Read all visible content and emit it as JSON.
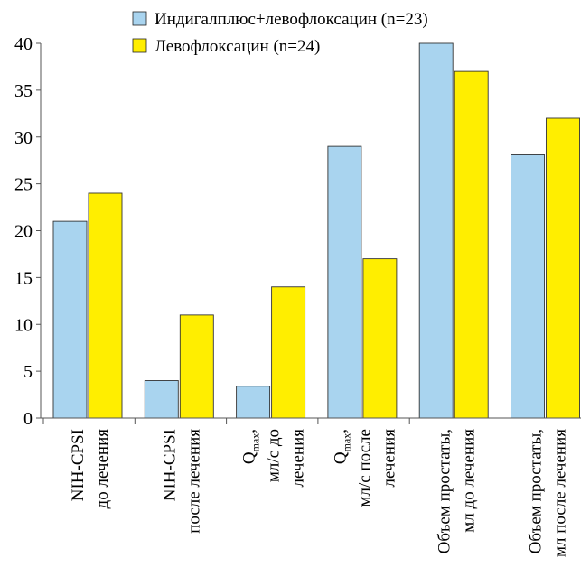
{
  "chart_data": {
    "type": "bar",
    "categories": [
      {
        "lines": [
          "NIH-CPSI",
          "до лечения"
        ]
      },
      {
        "lines": [
          "NIH-CPSI",
          "после лечения"
        ]
      },
      {
        "lines": [
          "Q|max|,",
          "мл/с до",
          "лечения"
        ]
      },
      {
        "lines": [
          "Q|max|,",
          "мл/с после",
          "лечения"
        ]
      },
      {
        "lines": [
          "Объем простаты,",
          "мл до лечения"
        ]
      },
      {
        "lines": [
          "Объем простаты,",
          "мл после лечения"
        ]
      }
    ],
    "series": [
      {
        "name": "Индигалплюс+левофлоксацин (n=23)",
        "color": "#a9d4ef",
        "values": [
          21,
          4,
          3.4,
          29,
          40,
          28.1
        ]
      },
      {
        "name": "Левофлоксацин (n=24)",
        "color": "#ffee00",
        "values": [
          24,
          11,
          14,
          17,
          37,
          32
        ]
      }
    ],
    "y_ticks": [
      "0",
      "5",
      "10",
      "15",
      "20",
      "25",
      "30",
      "35",
      "40"
    ],
    "ylim": [
      0,
      40
    ],
    "grid": false,
    "legend_position": "top"
  }
}
